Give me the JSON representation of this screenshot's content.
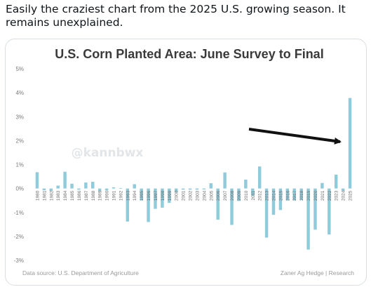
{
  "post": {
    "text": "Easily the craziest chart from the 2025 U.S. growing season. It remains unexplained."
  },
  "chart_data": {
    "type": "bar",
    "title": "U.S. Corn Planted Area: June Survey to Final",
    "xlabel": "",
    "ylabel": "",
    "ylim": [
      -3,
      5
    ],
    "yticks": [
      "5%",
      "4%",
      "3%",
      "2%",
      "1%",
      "0%",
      "-1%",
      "-2%",
      "-3%"
    ],
    "ytick_values": [
      5,
      4,
      3,
      2,
      1,
      0,
      -1,
      -2,
      -3
    ],
    "grid": false,
    "bar_color": "#90cbdc",
    "categories": [
      "1980",
      "1981",
      "1982",
      "1983",
      "1984",
      "1985",
      "1986",
      "1987",
      "1988",
      "1989",
      "1990",
      "1991",
      "1992",
      "1993",
      "1994",
      "1995",
      "1996",
      "1997",
      "1998",
      "1999",
      "2000",
      "2001",
      "2002",
      "2003",
      "2004",
      "2005",
      "2006",
      "2007",
      "2008",
      "2009",
      "2010",
      "2011",
      "2012",
      "2013",
      "2014",
      "2015",
      "2016",
      "2017",
      "2018",
      "2019",
      "2020",
      "2021",
      "2022",
      "2023",
      "2024",
      "2025"
    ],
    "values": [
      0.68,
      -0.08,
      -0.1,
      0.12,
      0.7,
      0.2,
      -0.05,
      0.25,
      0.28,
      -0.12,
      -0.08,
      0.05,
      0.02,
      -1.38,
      0.18,
      -0.5,
      -1.4,
      -0.85,
      -0.8,
      -0.6,
      -0.15,
      -0.05,
      -0.05,
      -0.05,
      -0.04,
      0.22,
      -1.3,
      0.67,
      -1.52,
      -0.52,
      0.37,
      -0.3,
      0.92,
      -2.05,
      -1.1,
      -0.9,
      -0.5,
      -0.5,
      -0.48,
      -2.55,
      -1.72,
      0.23,
      -1.92,
      0.58,
      -0.1,
      3.78
    ],
    "watermark": "@kannbwx",
    "annotation": "arrow-pointing-to-2025",
    "source": "Data source: U.S. Department of Agriculture",
    "credit": "Zaner Ag Hedge | Research"
  }
}
